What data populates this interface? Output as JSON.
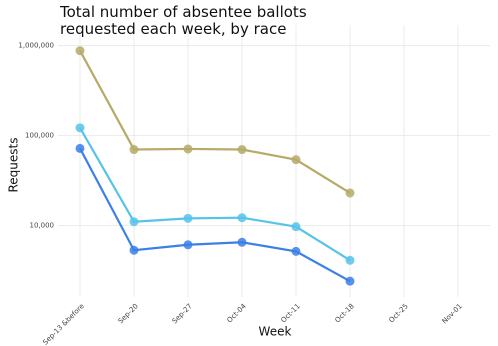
{
  "chart_data": {
    "type": "line",
    "title": "Total number of absentee ballots requested each week, by race",
    "x_label": "Week",
    "y_label": "Requests",
    "categories": [
      "Sep-13 &before",
      "Sep-20",
      "Sep-27",
      "Oct-04",
      "Oct-11",
      "Oct-18",
      "Oct-25",
      "Nov-01"
    ],
    "series": [
      {
        "color": "#b5aa68",
        "values": [
          880000,
          70000,
          71000,
          70000,
          54000,
          23000,
          null,
          null
        ]
      },
      {
        "color": "#56c3ea",
        "values": [
          122000,
          11000,
          12000,
          12200,
          9700,
          4100,
          null,
          null
        ]
      },
      {
        "color": "#3b7fe8",
        "values": [
          72000,
          5300,
          6100,
          6500,
          5150,
          2400,
          null,
          null
        ]
      }
    ],
    "yscale": "log",
    "ylim": [
      1600,
      1700000
    ],
    "yticks": [
      {
        "value": 10000,
        "label": "10,000"
      },
      {
        "value": 100000,
        "label": "100,000"
      },
      {
        "value": 1000000,
        "label": "1,000,000"
      }
    ],
    "grid": true
  }
}
